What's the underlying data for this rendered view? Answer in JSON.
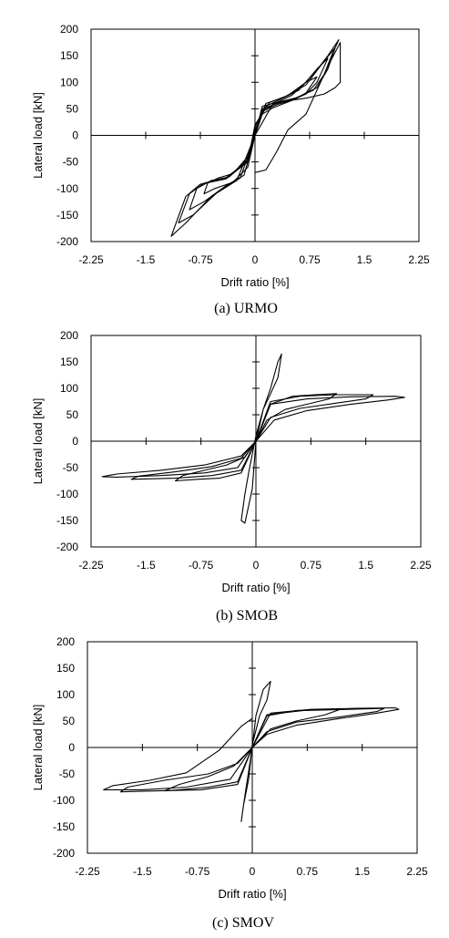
{
  "colors": {
    "curve": "#000000",
    "frame": "#000000",
    "background": "#ffffff"
  },
  "chart_data": [
    {
      "type": "line",
      "caption": "(a) URMO",
      "xlabel": "Drift ratio [%]",
      "ylabel": "Lateral load [kN]",
      "xlim": [
        -2.25,
        2.25
      ],
      "ylim": [
        -200,
        200
      ],
      "xticks": [
        "-2.25",
        "-1.5",
        "-0.75",
        "0",
        "0.75",
        "1.5",
        "2.25"
      ],
      "yticks": [
        "200",
        "150",
        "100",
        "50",
        "0",
        "-50",
        "-100",
        "-150",
        "-200"
      ],
      "grid": false,
      "series": [
        {
          "x": [
            0,
            0.1,
            0.25,
            0.4,
            0.55,
            0.7,
            0.8,
            0.85,
            0.7,
            0.5,
            0.3,
            0.1,
            0,
            -0.1,
            -0.3,
            -0.5,
            -0.65,
            -0.7,
            -0.55,
            -0.3,
            -0.1,
            0
          ],
          "y": [
            0,
            40,
            52,
            60,
            68,
            80,
            100,
            110,
            100,
            75,
            62,
            45,
            5,
            -40,
            -72,
            -80,
            -90,
            -110,
            -100,
            -88,
            -60,
            0
          ]
        },
        {
          "x": [
            0,
            0.1,
            0.3,
            0.5,
            0.7,
            0.85,
            0.95,
            1.0,
            0.85,
            0.6,
            0.35,
            0.15,
            0,
            -0.1,
            -0.35,
            -0.6,
            -0.8,
            -0.9,
            -0.7,
            -0.4,
            -0.15,
            0
          ],
          "y": [
            0,
            45,
            58,
            66,
            78,
            100,
            130,
            145,
            125,
            85,
            68,
            55,
            10,
            -45,
            -78,
            -85,
            -100,
            -140,
            -125,
            -95,
            -75,
            0
          ]
        },
        {
          "x": [
            0,
            0.1,
            0.3,
            0.55,
            0.8,
            0.95,
            1.05,
            1.1,
            0.95,
            0.7,
            0.4,
            0.15,
            0,
            -0.1,
            -0.4,
            -0.7,
            -0.9,
            -1.05,
            -0.85,
            -0.5,
            -0.2,
            0
          ],
          "y": [
            0,
            50,
            60,
            70,
            85,
            115,
            150,
            165,
            140,
            95,
            72,
            60,
            15,
            -48,
            -80,
            -90,
            -110,
            -165,
            -150,
            -105,
            -80,
            0
          ]
        },
        {
          "x": [
            0,
            0.1,
            0.3,
            0.6,
            0.85,
            1.0,
            1.1,
            1.15,
            1.0,
            0.75,
            0.45,
            0.2,
            0,
            -0.1,
            -0.4,
            -0.75,
            -0.95,
            -1.15,
            -0.95,
            -0.6,
            -0.25,
            0
          ],
          "y": [
            0,
            55,
            62,
            72,
            90,
            125,
            165,
            180,
            150,
            105,
            75,
            62,
            20,
            -50,
            -82,
            -92,
            -115,
            -190,
            -165,
            -115,
            -85,
            0
          ]
        },
        {
          "x": [
            0,
            0.25,
            0.45,
            0.7,
            0.95,
            1.1,
            1.17,
            1.17,
            1.0,
            0.7,
            0.45,
            0.3,
            0.15,
            0
          ],
          "y": [
            0,
            60,
            65,
            70,
            78,
            90,
            100,
            175,
            130,
            40,
            10,
            -30,
            -65,
            -70
          ]
        }
      ]
    },
    {
      "type": "line",
      "caption": "(b) SMOB",
      "xlabel": "Drift ratio [%]",
      "ylabel": "Lateral load [kN]",
      "xlim": [
        -2.25,
        2.25
      ],
      "ylim": [
        -200,
        200
      ],
      "xticks": [
        "-2.25",
        "-1.5",
        "-0.75",
        "0",
        "0.75",
        "1.5",
        "2.25"
      ],
      "yticks": [
        "200",
        "150",
        "100",
        "50",
        "0",
        "-50",
        "-100",
        "-150",
        "-200"
      ],
      "grid": false,
      "series": [
        {
          "x": [
            0,
            0.1,
            0.2,
            0.3,
            0.35,
            0.3,
            0.2,
            0.1,
            0,
            -0.1,
            -0.15,
            -0.2,
            -0.15,
            -0.05,
            0
          ],
          "y": [
            0,
            60,
            100,
            150,
            165,
            120,
            90,
            60,
            10,
            -60,
            -100,
            -150,
            -155,
            -90,
            0
          ]
        },
        {
          "x": [
            0,
            0.2,
            0.5,
            0.8,
            1.1,
            1.0,
            0.7,
            0.4,
            0.15,
            0,
            -0.2,
            -0.5,
            -0.8,
            -1.1,
            -1.0,
            -0.7,
            -0.4,
            -0.15,
            0
          ],
          "y": [
            0,
            70,
            85,
            88,
            90,
            80,
            70,
            60,
            40,
            0,
            -60,
            -70,
            -72,
            -75,
            -65,
            -55,
            -45,
            -30,
            0
          ]
        },
        {
          "x": [
            0,
            0.2,
            0.6,
            1.1,
            1.6,
            1.5,
            1.1,
            0.6,
            0.2,
            0,
            -0.2,
            -0.6,
            -1.1,
            -1.7,
            -1.6,
            -1.1,
            -0.6,
            -0.2,
            0
          ],
          "y": [
            0,
            75,
            85,
            88,
            88,
            80,
            72,
            62,
            45,
            0,
            -55,
            -65,
            -70,
            -72,
            -66,
            -58,
            -48,
            -32,
            0
          ]
        },
        {
          "x": [
            0,
            0.2,
            0.7,
            1.3,
            1.9,
            2.03,
            1.8,
            1.3,
            0.7,
            0.25,
            0,
            -0.25,
            -0.7,
            -1.3,
            -1.9,
            -2.1,
            -1.9,
            -1.3,
            -0.7,
            -0.2,
            0
          ],
          "y": [
            0,
            70,
            80,
            84,
            85,
            83,
            78,
            70,
            58,
            40,
            0,
            -50,
            -60,
            -65,
            -68,
            -67,
            -62,
            -55,
            -45,
            -28,
            0
          ]
        }
      ]
    },
    {
      "type": "line",
      "caption": "(c) SMOV",
      "xlabel": "Drift ratio [%]",
      "ylabel": "Lateral load [kN]",
      "xlim": [
        -2.25,
        2.25
      ],
      "ylim": [
        -200,
        200
      ],
      "xticks": [
        "-2.25",
        "-1.5",
        "-0.75",
        "0",
        "0.75",
        "1.5",
        "2.25"
      ],
      "yticks": [
        "200",
        "150",
        "100",
        "50",
        "0",
        "-50",
        "-100",
        "-150",
        "-200"
      ],
      "grid": false,
      "series": [
        {
          "x": [
            0,
            0.05,
            0.15,
            0.25,
            0.2,
            0.1,
            0,
            -0.05,
            -0.12,
            -0.15,
            -0.1,
            0
          ],
          "y": [
            0,
            60,
            110,
            125,
            90,
            60,
            5,
            -60,
            -110,
            -140,
            -90,
            0
          ]
        },
        {
          "x": [
            0,
            0.2,
            0.6,
            1.0,
            1.2,
            1.0,
            0.6,
            0.25,
            0,
            -0.2,
            -0.6,
            -1.0,
            -1.2,
            -1.0,
            -0.6,
            -0.25,
            0
          ],
          "y": [
            0,
            60,
            70,
            72,
            72,
            62,
            50,
            35,
            0,
            -65,
            -75,
            -80,
            -82,
            -70,
            -55,
            -35,
            0
          ]
        },
        {
          "x": [
            0,
            0.2,
            0.7,
            1.3,
            1.8,
            1.7,
            1.2,
            0.6,
            0.2,
            0,
            -0.2,
            -0.7,
            -1.3,
            -1.8,
            -1.7,
            -1.2,
            -0.6,
            -0.2,
            0
          ],
          "y": [
            0,
            62,
            70,
            72,
            74,
            68,
            58,
            48,
            30,
            0,
            -70,
            -80,
            -82,
            -84,
            -75,
            -62,
            -50,
            -30,
            0
          ]
        },
        {
          "x": [
            0,
            0.25,
            0.8,
            1.4,
            1.95,
            2.0,
            1.7,
            1.2,
            0.6,
            0.2,
            0,
            -0.3,
            -0.9,
            -1.5,
            -2.03,
            -1.9,
            -1.4,
            -0.9,
            -0.45,
            -0.15,
            0
          ],
          "y": [
            0,
            65,
            72,
            74,
            75,
            72,
            65,
            55,
            42,
            25,
            0,
            -60,
            -75,
            -80,
            -80,
            -72,
            -62,
            -48,
            -5,
            40,
            55
          ]
        }
      ]
    }
  ]
}
